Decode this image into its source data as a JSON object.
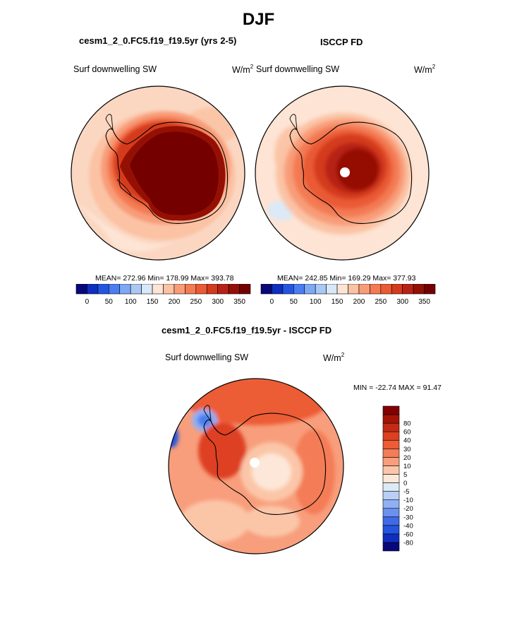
{
  "main_title": "DJF",
  "panels": [
    {
      "title": "cesm1_2_0.FC5.f19_f19.5yr (yrs 2-5)",
      "variable": "Surf downwelling SW",
      "units": "W/m",
      "units_sup": "2",
      "stats": "MEAN= 272.96  Min= 178.99  Max= 393.78"
    },
    {
      "title": "ISCCP FD",
      "variable": "Surf downwelling SW",
      "units": "W/m",
      "units_sup": "2",
      "stats": "MEAN= 242.85  Min= 169.29  Max= 377.93"
    },
    {
      "title": "cesm1_2_0.FC5.f19_f19.5yr - ISCCP FD",
      "variable": "Surf downwelling SW",
      "units": "W/m",
      "units_sup": "2",
      "stats": "MIN = -22.74 MAX =  91.47"
    }
  ],
  "colorbar_main": {
    "colors": [
      "#08087a",
      "#0f2ec0",
      "#2355e0",
      "#4a7ef0",
      "#7fa8f4",
      "#aac8f4",
      "#d8e8f6",
      "#fde4d4",
      "#fbc2a4",
      "#f89c78",
      "#f37a52",
      "#ea5a34",
      "#d43a1e",
      "#b82214",
      "#951004",
      "#740000"
    ],
    "tick_labels": [
      "0",
      "50",
      "100",
      "150",
      "200",
      "250",
      "300",
      "350"
    ]
  },
  "colorbar_diff": {
    "colors": [
      "#08087a",
      "#0f2ec0",
      "#2355e0",
      "#3f6ae8",
      "#6a90f0",
      "#90b0f4",
      "#b8cef4",
      "#dce9f6",
      "#fde7d8",
      "#fbc6a8",
      "#f89e7c",
      "#f47c56",
      "#ec5c36",
      "#dd4020",
      "#c42a14",
      "#a51506",
      "#840000"
    ],
    "tick_labels": [
      "-80",
      "-60",
      "-40",
      "-30",
      "-20",
      "-10",
      "-5",
      "0",
      "5",
      "10",
      "20",
      "30",
      "40",
      "60",
      "80"
    ]
  },
  "chart_data": [
    {
      "type": "heatmap",
      "projection": "south polar stereographic",
      "title": "cesm1_2_0.FC5.f19_f19.5yr (yrs 2-5)",
      "variable": "Surf downwelling SW",
      "units": "W/m2",
      "season": "DJF",
      "mean": 272.96,
      "min": 178.99,
      "max": 393.78,
      "contour_levels": [
        0,
        25,
        50,
        75,
        100,
        125,
        150,
        175,
        200,
        225,
        250,
        275,
        300,
        325,
        350
      ]
    },
    {
      "type": "heatmap",
      "projection": "south polar stereographic",
      "title": "ISCCP FD",
      "variable": "Surf downwelling SW",
      "units": "W/m2",
      "season": "DJF",
      "mean": 242.85,
      "min": 169.29,
      "max": 377.93,
      "contour_levels": [
        0,
        25,
        50,
        75,
        100,
        125,
        150,
        175,
        200,
        225,
        250,
        275,
        300,
        325,
        350
      ]
    },
    {
      "type": "heatmap",
      "projection": "south polar stereographic",
      "title": "cesm1_2_0.FC5.f19_f19.5yr - ISCCP FD",
      "variable": "Surf downwelling SW",
      "units": "W/m2",
      "season": "DJF",
      "min": -22.74,
      "max": 91.47,
      "contour_levels": [
        -80,
        -60,
        -40,
        -30,
        -20,
        -10,
        -5,
        0,
        5,
        10,
        20,
        30,
        40,
        60,
        80
      ]
    }
  ]
}
